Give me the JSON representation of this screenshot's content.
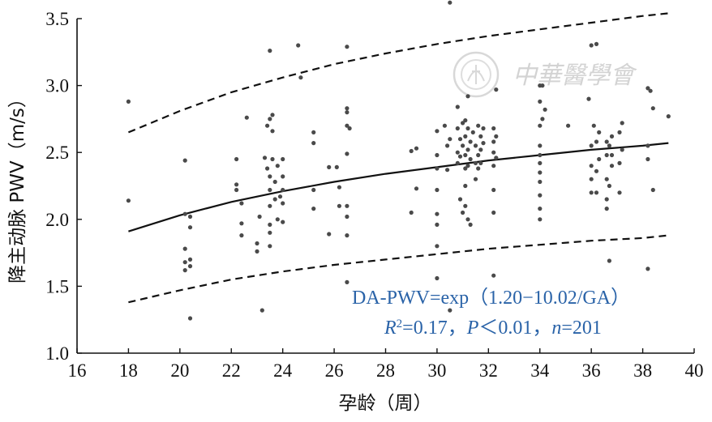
{
  "chart_data": {
    "type": "scatter",
    "xlabel": "孕龄（周）",
    "ylabel": "降主动脉 PWV（m/s）",
    "xlim": [
      16,
      40
    ],
    "ylim": [
      1.0,
      3.5
    ],
    "xticks": [
      "16",
      "18",
      "20",
      "22",
      "24",
      "26",
      "28",
      "30",
      "32",
      "34",
      "36",
      "38",
      "40"
    ],
    "yticks": [
      "1.0",
      "1.5",
      "2.0",
      "2.5",
      "3.0",
      "3.5"
    ],
    "grid": false,
    "annotations": {
      "equation": "DA-PWV=exp（1.20−10.02/GA）",
      "stats_parts": [
        "R",
        "2",
        "=0.17，",
        "P",
        "＜0.01，",
        "n",
        "=201"
      ]
    },
    "watermark": {
      "text": "中華醫學會",
      "seal_icon": "medical-association-seal-icon"
    },
    "lines": [
      {
        "role": "fit",
        "style": "solid",
        "x": [
          18,
          20,
          22,
          24,
          26,
          28,
          30,
          32,
          34,
          36,
          38,
          39
        ],
        "y": [
          1.91,
          2.03,
          2.13,
          2.21,
          2.28,
          2.34,
          2.39,
          2.44,
          2.48,
          2.52,
          2.55,
          2.57
        ]
      },
      {
        "role": "upper",
        "style": "dashed",
        "x": [
          18,
          20,
          22,
          24,
          26,
          28,
          30,
          32,
          34,
          36,
          38,
          39
        ],
        "y": [
          2.65,
          2.81,
          2.95,
          3.06,
          3.16,
          3.24,
          3.31,
          3.37,
          3.42,
          3.47,
          3.52,
          3.54
        ]
      },
      {
        "role": "lower",
        "style": "dashed",
        "x": [
          18,
          20,
          22,
          24,
          26,
          28,
          30,
          32,
          34,
          36,
          38,
          39
        ],
        "y": [
          1.38,
          1.47,
          1.55,
          1.61,
          1.66,
          1.7,
          1.74,
          1.78,
          1.81,
          1.84,
          1.86,
          1.88
        ]
      }
    ],
    "points": [
      [
        18,
        2.88
      ],
      [
        18,
        2.14
      ],
      [
        20.2,
        2.44
      ],
      [
        20.2,
        2.04
      ],
      [
        20.2,
        1.78
      ],
      [
        20.2,
        1.68
      ],
      [
        20.2,
        1.62
      ],
      [
        20.4,
        2.02
      ],
      [
        20.4,
        1.94
      ],
      [
        20.4,
        1.7
      ],
      [
        20.4,
        1.65
      ],
      [
        20.4,
        1.26
      ],
      [
        22.2,
        2.45
      ],
      [
        22.2,
        2.26
      ],
      [
        22.2,
        2.22
      ],
      [
        22.4,
        2.12
      ],
      [
        22.4,
        1.97
      ],
      [
        22.4,
        1.88
      ],
      [
        22.6,
        2.76
      ],
      [
        23,
        1.82
      ],
      [
        23,
        1.76
      ],
      [
        23.1,
        2.02
      ],
      [
        23.2,
        1.32
      ],
      [
        23.3,
        2.46
      ],
      [
        23.4,
        2.38
      ],
      [
        23.4,
        2.7
      ],
      [
        23.5,
        3.26
      ],
      [
        23.5,
        2.75
      ],
      [
        23.5,
        2.32
      ],
      [
        23.5,
        2.22
      ],
      [
        23.5,
        2.1
      ],
      [
        23.5,
        1.96
      ],
      [
        23.5,
        1.9
      ],
      [
        23.5,
        1.8
      ],
      [
        23.6,
        2.78
      ],
      [
        23.6,
        2.66
      ],
      [
        23.6,
        2.45
      ],
      [
        23.7,
        2.28
      ],
      [
        23.7,
        2.15
      ],
      [
        23.8,
        2.4
      ],
      [
        23.8,
        2.0
      ],
      [
        23.9,
        2.17
      ],
      [
        24,
        1.98
      ],
      [
        24,
        2.45
      ],
      [
        24,
        2.32
      ],
      [
        24,
        2.22
      ],
      [
        24,
        2.12
      ],
      [
        24.6,
        3.3
      ],
      [
        24.7,
        3.06
      ],
      [
        25.2,
        2.65
      ],
      [
        25.2,
        2.57
      ],
      [
        25.2,
        2.22
      ],
      [
        25.2,
        2.08
      ],
      [
        25.8,
        2.39
      ],
      [
        25.8,
        1.89
      ],
      [
        26.1,
        2.39
      ],
      [
        26.2,
        2.24
      ],
      [
        26.2,
        2.1
      ],
      [
        26.5,
        3.29
      ],
      [
        26.5,
        2.83
      ],
      [
        26.5,
        2.8
      ],
      [
        26.5,
        2.7
      ],
      [
        26.5,
        2.49
      ],
      [
        26.5,
        2.1
      ],
      [
        26.5,
        2.02
      ],
      [
        26.5,
        1.88
      ],
      [
        26.5,
        1.53
      ],
      [
        26.6,
        2.68
      ],
      [
        29,
        2.51
      ],
      [
        29,
        2.05
      ],
      [
        29.2,
        2.53
      ],
      [
        29.2,
        2.23
      ],
      [
        30,
        2.66
      ],
      [
        30,
        2.48
      ],
      [
        30,
        2.38
      ],
      [
        30,
        2.22
      ],
      [
        30,
        2.04
      ],
      [
        30,
        1.96
      ],
      [
        30,
        1.8
      ],
      [
        30,
        1.56
      ],
      [
        30.3,
        2.7
      ],
      [
        30.4,
        2.55
      ],
      [
        30.4,
        2.37
      ],
      [
        30.5,
        2.6
      ],
      [
        30.5,
        3.62
      ],
      [
        30.5,
        1.32
      ],
      [
        30.8,
        2.84
      ],
      [
        30.8,
        2.68
      ],
      [
        30.8,
        2.5
      ],
      [
        30.8,
        2.42
      ],
      [
        30.9,
        2.6
      ],
      [
        30.9,
        2.47
      ],
      [
        30.9,
        2.15
      ],
      [
        31,
        2.72
      ],
      [
        31,
        2.55
      ],
      [
        31,
        2.05
      ],
      [
        31.1,
        2.74
      ],
      [
        31.1,
        2.62
      ],
      [
        31.1,
        2.48
      ],
      [
        31.1,
        2.38
      ],
      [
        31.1,
        2.25
      ],
      [
        31.1,
        2.1
      ],
      [
        31.2,
        2.92
      ],
      [
        31.2,
        2.68
      ],
      [
        31.2,
        2.52
      ],
      [
        31.2,
        2.4
      ],
      [
        31.2,
        2.0
      ],
      [
        31.3,
        2.58
      ],
      [
        31.3,
        2.45
      ],
      [
        31.3,
        1.96
      ],
      [
        31.4,
        2.65
      ],
      [
        31.5,
        2.55
      ],
      [
        31.5,
        2.42
      ],
      [
        31.5,
        2.3
      ],
      [
        31.6,
        2.7
      ],
      [
        31.6,
        2.48
      ],
      [
        31.6,
        2.38
      ],
      [
        31.7,
        2.62
      ],
      [
        31.7,
        2.52
      ],
      [
        31.7,
        2.42
      ],
      [
        31.8,
        2.68
      ],
      [
        31.8,
        2.57
      ],
      [
        32.2,
        2.68
      ],
      [
        32.2,
        2.58
      ],
      [
        32.2,
        2.5
      ],
      [
        32.2,
        2.4
      ],
      [
        32.2,
        2.22
      ],
      [
        32.2,
        2.05
      ],
      [
        32.2,
        1.58
      ],
      [
        32.3,
        2.62
      ],
      [
        32.3,
        2.46
      ],
      [
        32.3,
        2.97
      ],
      [
        34,
        3.0
      ],
      [
        34,
        2.88
      ],
      [
        34,
        2.7
      ],
      [
        34,
        2.55
      ],
      [
        34,
        2.48
      ],
      [
        34,
        2.42
      ],
      [
        34,
        2.35
      ],
      [
        34,
        2.28
      ],
      [
        34,
        2.18
      ],
      [
        34,
        2.08
      ],
      [
        34,
        2.0
      ],
      [
        34.1,
        3.0
      ],
      [
        34.1,
        2.75
      ],
      [
        34.2,
        2.82
      ],
      [
        35.1,
        2.7
      ],
      [
        35.9,
        2.9
      ],
      [
        36,
        3.3
      ],
      [
        36,
        2.55
      ],
      [
        36,
        2.4
      ],
      [
        36,
        2.3
      ],
      [
        36,
        2.2
      ],
      [
        36.1,
        2.7
      ],
      [
        36.2,
        3.31
      ],
      [
        36.2,
        2.58
      ],
      [
        36.2,
        2.36
      ],
      [
        36.2,
        2.2
      ],
      [
        36.3,
        2.65
      ],
      [
        36.3,
        2.45
      ],
      [
        36.6,
        2.58
      ],
      [
        36.6,
        2.48
      ],
      [
        36.6,
        2.3
      ],
      [
        36.6,
        2.15
      ],
      [
        36.6,
        2.08
      ],
      [
        36.7,
        2.55
      ],
      [
        36.7,
        2.25
      ],
      [
        36.7,
        1.69
      ],
      [
        36.8,
        2.48
      ],
      [
        36.8,
        2.4
      ],
      [
        36.8,
        2.62
      ],
      [
        37.1,
        2.65
      ],
      [
        37.1,
        2.42
      ],
      [
        37.1,
        2.2
      ],
      [
        37.2,
        2.72
      ],
      [
        37.2,
        2.52
      ],
      [
        38.2,
        2.98
      ],
      [
        38.2,
        2.55
      ],
      [
        38.2,
        2.45
      ],
      [
        38.2,
        1.63
      ],
      [
        38.3,
        2.96
      ],
      [
        38.4,
        2.83
      ],
      [
        38.4,
        2.22
      ],
      [
        39,
        2.77
      ]
    ]
  }
}
